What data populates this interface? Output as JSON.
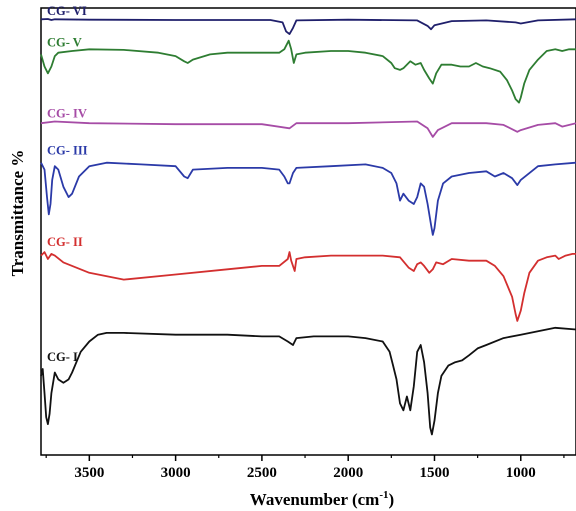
{
  "chart_data": {
    "type": "line",
    "title": "",
    "xlabel": "Wavenumber (cm",
    "xlabel_sup": "-1",
    "xlabel_end": ")",
    "ylabel": "Transmittance %",
    "xlim": [
      3780,
      680
    ],
    "x_reversed": true,
    "x_ticks": [
      3500,
      3000,
      2500,
      2000,
      1500,
      1000
    ],
    "y_ticks": false,
    "grid": false,
    "series": [
      {
        "name": "CG- VI",
        "color": "#1f1f6b",
        "label_color": "#1f1f6b",
        "x": [
          3780,
          3740,
          3720,
          3700,
          3500,
          3000,
          2450,
          2380,
          2360,
          2340,
          2320,
          2300,
          2000,
          1600,
          1540,
          1520,
          1500,
          1400,
          1200,
          1030,
          1000,
          900,
          680
        ],
        "y": [
          3.3,
          3.2,
          3.5,
          3.3,
          3.4,
          3.5,
          3.5,
          4.2,
          6.8,
          7.6,
          5.8,
          3.6,
          3.4,
          3.6,
          5.2,
          6.2,
          5.0,
          3.8,
          3.6,
          4.2,
          4.5,
          3.6,
          3.3
        ]
      },
      {
        "name": "CG- V",
        "color": "#2e7d32",
        "label_color": "#2e7d32",
        "x": [
          3780,
          3760,
          3740,
          3720,
          3700,
          3680,
          3600,
          3500,
          3300,
          3100,
          3000,
          2950,
          2930,
          2900,
          2800,
          2700,
          2600,
          2400,
          2370,
          2345,
          2330,
          2315,
          2300,
          2250,
          2100,
          2000,
          1900,
          1800,
          1750,
          1730,
          1700,
          1680,
          1640,
          1610,
          1580,
          1560,
          1530,
          1510,
          1490,
          1460,
          1400,
          1350,
          1300,
          1260,
          1220,
          1180,
          1120,
          1080,
          1050,
          1030,
          1010,
          1000,
          980,
          950,
          900,
          850,
          800,
          760,
          720,
          680
        ],
        "y": [
          13.5,
          17.0,
          19.0,
          17.0,
          14.0,
          13.0,
          12.5,
          12.0,
          12.2,
          13.0,
          14.0,
          15.5,
          16.0,
          15.0,
          13.5,
          13.0,
          13.0,
          13.0,
          12.0,
          9.5,
          12.0,
          16.0,
          13.5,
          13.0,
          12.5,
          12.5,
          13.0,
          14.0,
          16.0,
          17.5,
          18.0,
          17.5,
          15.5,
          16.5,
          16.0,
          18.0,
          20.5,
          22.0,
          19.0,
          16.5,
          16.5,
          17.0,
          17.0,
          16.0,
          17.0,
          17.5,
          18.5,
          21.0,
          24.0,
          26.5,
          27.5,
          26.0,
          22.0,
          18.0,
          15.0,
          12.5,
          12.0,
          12.5,
          12.0,
          12.0
        ]
      },
      {
        "name": "CG- IV",
        "color": "#a64ca6",
        "label_color": "#a64ca6",
        "x": [
          3780,
          3700,
          3500,
          3000,
          2500,
          2340,
          2300,
          2000,
          1600,
          1540,
          1510,
          1480,
          1400,
          1200,
          1100,
          1020,
          1000,
          900,
          800,
          760,
          680
        ],
        "y": [
          33.5,
          33.0,
          33.5,
          33.8,
          33.8,
          35.0,
          33.5,
          33.5,
          33.0,
          35.0,
          37.5,
          35.5,
          33.5,
          33.5,
          34.0,
          36.0,
          35.5,
          34.0,
          33.5,
          34.5,
          33.5
        ]
      },
      {
        "name": "CG- III",
        "color": "#2b3aa8",
        "label_color": "#2b3aa8",
        "x": [
          3780,
          3760,
          3745,
          3735,
          3725,
          3715,
          3700,
          3680,
          3650,
          3620,
          3600,
          3560,
          3500,
          3400,
          3200,
          3000,
          2950,
          2930,
          2900,
          2700,
          2500,
          2400,
          2370,
          2350,
          2340,
          2320,
          2300,
          2100,
          1900,
          1800,
          1750,
          1720,
          1700,
          1680,
          1650,
          1620,
          1600,
          1580,
          1560,
          1540,
          1520,
          1510,
          1500,
          1480,
          1450,
          1400,
          1300,
          1200,
          1150,
          1100,
          1050,
          1020,
          1000,
          900,
          800,
          680
        ],
        "y": [
          45.0,
          47.0,
          55.0,
          60.0,
          57.0,
          50.0,
          46.0,
          47.0,
          52.0,
          55.0,
          54.0,
          49.0,
          46.0,
          45.0,
          45.5,
          46.0,
          49.0,
          49.5,
          47.0,
          46.5,
          46.5,
          47.0,
          49.0,
          51.0,
          51.0,
          48.0,
          46.5,
          46.0,
          45.5,
          46.5,
          48.0,
          51.0,
          56.0,
          54.0,
          56.0,
          57.0,
          55.0,
          51.0,
          52.0,
          57.0,
          63.0,
          66.0,
          64.0,
          56.0,
          51.0,
          49.0,
          48.0,
          47.5,
          49.0,
          48.0,
          49.5,
          51.5,
          50.0,
          46.0,
          45.5,
          45.0
        ]
      },
      {
        "name": "CG- II",
        "color": "#d32f2f",
        "label_color": "#d32f2f",
        "x": [
          3780,
          3760,
          3740,
          3720,
          3700,
          3650,
          3500,
          3300,
          3000,
          2700,
          2500,
          2400,
          2350,
          2340,
          2330,
          2310,
          2300,
          2250,
          2100,
          1900,
          1800,
          1700,
          1650,
          1620,
          1600,
          1580,
          1560,
          1530,
          1510,
          1490,
          1450,
          1400,
          1300,
          1200,
          1150,
          1100,
          1050,
          1030,
          1020,
          1000,
          980,
          950,
          900,
          850,
          800,
          780,
          740,
          700,
          680
        ],
        "y": [
          72.0,
          71.0,
          73.0,
          71.5,
          72.0,
          74.0,
          77.0,
          79.0,
          77.5,
          76.0,
          75.0,
          75.0,
          73.0,
          71.0,
          73.5,
          76.5,
          73.0,
          72.5,
          72.0,
          72.0,
          72.0,
          72.5,
          75.5,
          76.5,
          74.5,
          74.0,
          75.0,
          77.0,
          76.0,
          74.0,
          74.5,
          73.0,
          73.5,
          73.5,
          75.0,
          78.0,
          84.0,
          89.0,
          91.0,
          88.0,
          83.0,
          77.0,
          73.5,
          72.5,
          72.0,
          73.0,
          72.0,
          71.5,
          71.5
        ]
      },
      {
        "name": "CG- I",
        "color": "#111111",
        "label_color": "#111111",
        "x": [
          3780,
          3770,
          3760,
          3750,
          3740,
          3730,
          3720,
          3710,
          3700,
          3680,
          3650,
          3620,
          3600,
          3550,
          3500,
          3450,
          3400,
          3300,
          3000,
          2700,
          2500,
          2400,
          2350,
          2320,
          2300,
          2200,
          2000,
          1900,
          1800,
          1760,
          1740,
          1720,
          1700,
          1680,
          1660,
          1640,
          1620,
          1600,
          1580,
          1560,
          1540,
          1525,
          1515,
          1500,
          1480,
          1460,
          1420,
          1380,
          1340,
          1300,
          1250,
          1200,
          1100,
          1000,
          900,
          800,
          680
        ],
        "y": [
          107.0,
          105.0,
          112.0,
          119.0,
          121.0,
          118.0,
          112.0,
          109.0,
          106.0,
          108.0,
          109.0,
          108.0,
          106.0,
          100.0,
          97.0,
          95.0,
          94.5,
          94.5,
          95.0,
          95.0,
          95.5,
          95.5,
          97.0,
          98.0,
          96.0,
          95.5,
          95.5,
          96.0,
          97.0,
          100.0,
          104.0,
          108.0,
          115.0,
          117.0,
          113.0,
          117.0,
          110.0,
          100.0,
          98.0,
          103.0,
          112.0,
          122.0,
          124.0,
          120.0,
          112.0,
          107.0,
          104.0,
          103.0,
          102.5,
          101.0,
          99.0,
          98.0,
          96.0,
          95.0,
          94.0,
          93.0,
          93.5
        ]
      }
    ]
  }
}
